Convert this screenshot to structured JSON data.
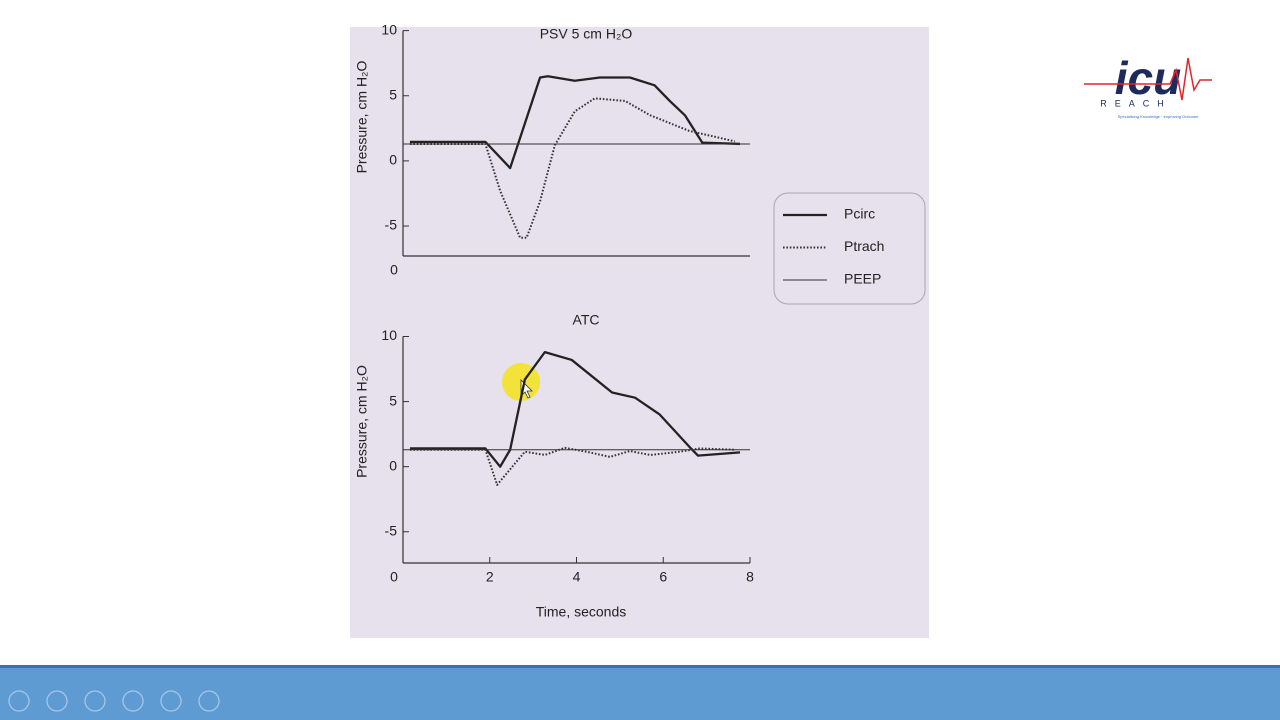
{
  "chart_data": [
    {
      "type": "line",
      "title": "PSV 5 cm H₂O",
      "y_label": "Pressure, cm H₂O",
      "xlim": [
        0,
        8
      ],
      "xticks": [
        0
      ],
      "ylim": [
        -7.3,
        10.2
      ],
      "yticks": [
        10,
        5,
        0,
        -5
      ],
      "series": [
        {
          "name": "Pcirc",
          "color": "#222222",
          "style": "solid",
          "x": [
            0.16,
            1.9,
            2.47,
            3.16,
            3.34,
            3.96,
            4.54,
            5.23,
            5.8,
            6.15,
            6.5,
            6.9,
            7.77
          ],
          "values": [
            1.46,
            1.46,
            -0.55,
            6.4,
            6.5,
            6.15,
            6.4,
            6.4,
            5.8,
            4.6,
            3.5,
            1.4,
            1.3
          ]
        },
        {
          "name": "Ptrach",
          "color": "#333333",
          "style": "dotted",
          "x": [
            0.16,
            1.9,
            2.24,
            2.7,
            2.85,
            3.16,
            3.5,
            3.96,
            4.42,
            5.12,
            5.7,
            6.6,
            7.65
          ],
          "values": [
            1.3,
            1.3,
            -2.3,
            -5.9,
            -5.9,
            -3.1,
            1.2,
            3.8,
            4.8,
            4.6,
            3.5,
            2.3,
            1.5
          ]
        },
        {
          "name": "PEEP",
          "color": "#333333",
          "style": "thin",
          "x": [
            0,
            8
          ],
          "values": [
            1.3,
            1.3
          ]
        }
      ]
    },
    {
      "type": "line",
      "title": "ATC",
      "y_label": "Pressure, cm H₂O",
      "x_label": "Time, seconds",
      "xlim": [
        0,
        8
      ],
      "xticks": [
        0,
        2,
        4,
        6,
        8
      ],
      "ylim": [
        -7.4,
        10.5
      ],
      "yticks": [
        10,
        5,
        0,
        -5
      ],
      "series": [
        {
          "color": "#222222",
          "style": "solid",
          "x": [
            0.16,
            1.9,
            2.24,
            2.47,
            2.81,
            3.27,
            3.89,
            4.82,
            5.35,
            5.92,
            6.61,
            6.8,
            7.77
          ],
          "values": [
            1.4,
            1.4,
            0,
            1.3,
            6.7,
            8.8,
            8.2,
            5.7,
            5.3,
            4.0,
            1.5,
            0.85,
            1.1
          ]
        },
        {
          "color": "#333333",
          "style": "dotted",
          "x": [
            0.16,
            1.9,
            2.17,
            2.47,
            2.81,
            3.27,
            3.73,
            4.3,
            4.77,
            5.23,
            5.7,
            6.38,
            6.84,
            7.65
          ],
          "values": [
            1.3,
            1.3,
            -1.4,
            -0.2,
            1.15,
            0.9,
            1.45,
            1.1,
            0.75,
            1.2,
            0.9,
            1.15,
            1.4,
            1.3
          ]
        },
        {
          "color": "#333333",
          "style": "thin",
          "x": [
            0,
            8
          ],
          "values": [
            1.3,
            1.3
          ]
        }
      ]
    }
  ],
  "logo": {
    "name": "icu",
    "sub": "REACH",
    "tagline": "Specialising Knowledge · Improving Outcome"
  }
}
